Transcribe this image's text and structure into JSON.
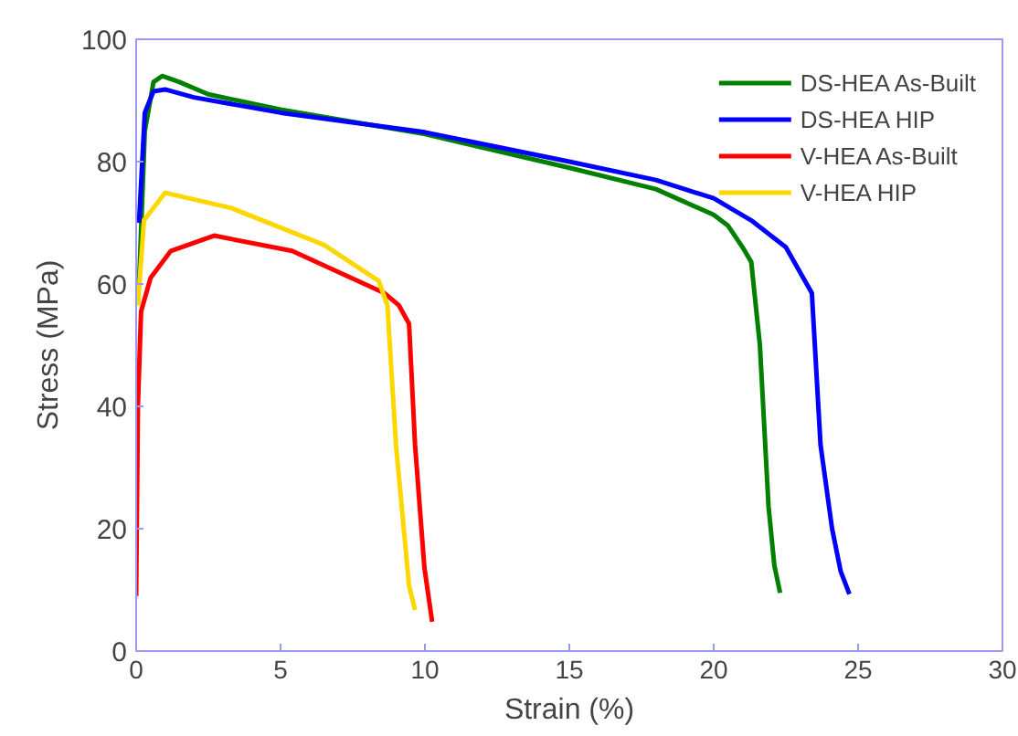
{
  "chart_data": {
    "type": "line",
    "xlabel": "Strain (%)",
    "ylabel": "Stress (MPa)",
    "xlim": [
      0,
      30
    ],
    "ylim": [
      0,
      100
    ],
    "xticks": [
      0,
      5,
      10,
      15,
      20,
      25,
      30
    ],
    "yticks": [
      0,
      20,
      40,
      60,
      80,
      100
    ],
    "grid": false,
    "legend": "top right",
    "line_style": "solid",
    "marker": "none",
    "series": [
      {
        "name": "DS-HEA As-Built",
        "color": "#008000",
        "x": [
          0.1,
          0.3,
          0.6,
          0.9,
          1.5,
          2.5,
          5,
          10,
          15,
          18,
          20,
          20.5,
          21,
          21.3,
          21.6,
          21.9,
          22.1,
          22.3
        ],
        "values": [
          60,
          85,
          93,
          94,
          93,
          91,
          88.5,
          84.5,
          79,
          75.5,
          71.3,
          69.5,
          66,
          63.6,
          50,
          23.6,
          14,
          9.5
        ]
      },
      {
        "name": "DS-HEA HIP",
        "color": "#0000ff",
        "x": [
          0.1,
          0.3,
          0.6,
          1,
          2,
          5,
          10,
          15,
          18,
          20,
          21.3,
          22.5,
          23.4,
          23.7,
          24.1,
          24.4,
          24.7
        ],
        "values": [
          70,
          88,
          91.5,
          91.8,
          90.5,
          88,
          84.8,
          80,
          77,
          74,
          70.4,
          66,
          58.5,
          33.7,
          20,
          13,
          9.3
        ]
      },
      {
        "name": "V-HEA As-Built",
        "color": "#ff0000",
        "x": [
          0,
          0.06,
          0.17,
          0.5,
          1.2,
          2.7,
          5.4,
          8.6,
          9.1,
          9.45,
          9.66,
          9.98,
          10.25
        ],
        "values": [
          9,
          40,
          55.5,
          61,
          65.4,
          67.9,
          65.4,
          58.5,
          56.5,
          53.5,
          33.6,
          13.7,
          4.8
        ]
      },
      {
        "name": "V-HEA HIP",
        "color": "#ffd700",
        "x": [
          0.06,
          0.27,
          1.0,
          3.3,
          6.5,
          8.4,
          8.7,
          9.0,
          9.45,
          9.66
        ],
        "values": [
          56.5,
          70.4,
          74.9,
          72.4,
          66.4,
          60.5,
          56.5,
          33.6,
          10.7,
          6.7
        ]
      }
    ]
  }
}
